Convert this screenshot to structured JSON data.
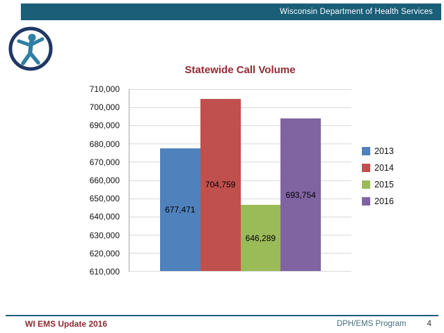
{
  "header": {
    "title": "Wisconsin Department of Health Services"
  },
  "icons": {
    "logo": "dhs-person-logo"
  },
  "colors": {
    "header_bar": "#1a5e78",
    "chart_title": "#8f2a32",
    "footer_rule": "#1a5e78",
    "footer_left": "#8f2a32",
    "footer_program": "#44707f",
    "axis_line": "#a6a6a6",
    "gridline": "#d9d9d9"
  },
  "chart_data": {
    "type": "bar",
    "title": "Statewide Call Volume",
    "categories": [
      "2013",
      "2014",
      "2015",
      "2016"
    ],
    "values": [
      677471,
      704759,
      646289,
      693754
    ],
    "value_labels": [
      "677,471",
      "704,759",
      "646,289",
      "693,754"
    ],
    "series_colors": [
      "#4f81bd",
      "#c0504d",
      "#9bbb59",
      "#8064a2"
    ],
    "xlabel": "",
    "ylabel": "",
    "ylim": [
      610000,
      710000
    ],
    "ytick_step": 10000,
    "ytick_labels": [
      "710,000",
      "700,000",
      "690,000",
      "680,000",
      "670,000",
      "660,000",
      "650,000",
      "640,000",
      "630,000",
      "620,000",
      "610,000"
    ],
    "grid": true,
    "legend_position": "right",
    "data_label_position": "center-inside"
  },
  "footer": {
    "left": "WI EMS Update 2016",
    "right_label": "DPH/EMS Program",
    "page_number": "4"
  }
}
